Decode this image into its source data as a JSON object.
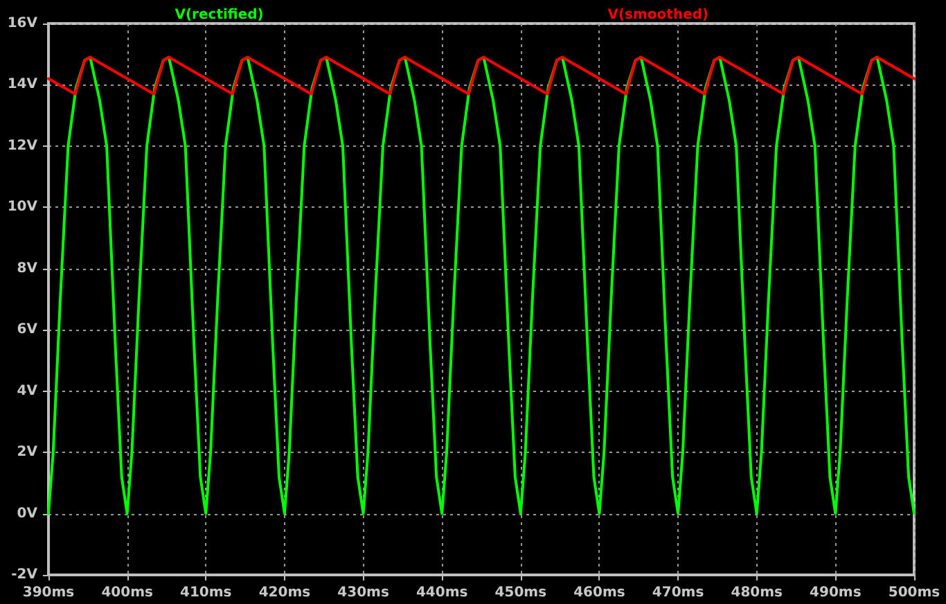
{
  "chart_data": {
    "type": "line",
    "xlim": [
      390,
      500
    ],
    "xticks": [
      {
        "value": 390,
        "label": "390ms"
      },
      {
        "value": 400,
        "label": "400ms"
      },
      {
        "value": 410,
        "label": "410ms"
      },
      {
        "value": 420,
        "label": "420ms"
      },
      {
        "value": 430,
        "label": "430ms"
      },
      {
        "value": 440,
        "label": "440ms"
      },
      {
        "value": 450,
        "label": "450ms"
      },
      {
        "value": 460,
        "label": "460ms"
      },
      {
        "value": 470,
        "label": "470ms"
      },
      {
        "value": 480,
        "label": "480ms"
      },
      {
        "value": 490,
        "label": "490ms"
      },
      {
        "value": 500,
        "label": "500ms"
      }
    ],
    "ylim": [
      -2,
      16
    ],
    "yticks": [
      {
        "value": -2,
        "label": "-2V"
      },
      {
        "value": 0,
        "label": "0V"
      },
      {
        "value": 2,
        "label": "2V"
      },
      {
        "value": 4,
        "label": "4V"
      },
      {
        "value": 6,
        "label": "6V"
      },
      {
        "value": 8,
        "label": "8V"
      },
      {
        "value": 10,
        "label": "10V"
      },
      {
        "value": 12,
        "label": "12V"
      },
      {
        "value": 14,
        "label": "14V"
      },
      {
        "value": 16,
        "label": "16V"
      }
    ],
    "grid": true,
    "legend": "top",
    "marker": "none",
    "line_style": "solid",
    "series": [
      {
        "name": "V(rectified)",
        "color": "#00ff00",
        "x": [
          390,
          390.6,
          391.5,
          392.5,
          393.5,
          394.6,
          395.3,
          396.5,
          397.4,
          398.5,
          399.3,
          400,
          400.6,
          401.5,
          402.5,
          403.5,
          404.6,
          405.3,
          406.5,
          407.4,
          408.5,
          409.3,
          410,
          410.6,
          411.5,
          412.5,
          413.5,
          414.6,
          415.3,
          416.5,
          417.4,
          418.5,
          419.3,
          420,
          420.6,
          421.5,
          422.5,
          423.5,
          424.6,
          425.3,
          426.5,
          427.4,
          428.5,
          429.3,
          430,
          430.6,
          431.5,
          432.5,
          433.5,
          434.6,
          435.3,
          436.5,
          437.4,
          438.5,
          439.3,
          440,
          440.6,
          441.5,
          442.5,
          443.5,
          444.6,
          445.3,
          446.5,
          447.4,
          448.5,
          449.3,
          450,
          450.6,
          451.5,
          452.5,
          453.5,
          454.6,
          455.3,
          456.5,
          457.4,
          458.5,
          459.3,
          460,
          460.6,
          461.5,
          462.5,
          463.5,
          464.6,
          465.3,
          466.5,
          467.4,
          468.5,
          469.3,
          470,
          470.6,
          471.5,
          472.5,
          473.5,
          474.6,
          475.3,
          476.5,
          477.4,
          478.5,
          479.3,
          480,
          480.6,
          481.5,
          482.5,
          483.5,
          484.6,
          485.3,
          486.5,
          487.4,
          488.5,
          489.3,
          490,
          490.6,
          491.5,
          492.5,
          493.5,
          494.6,
          495.3,
          496.5,
          497.4,
          498.5,
          499.3,
          500
        ],
        "values": [
          0,
          2,
          7,
          12,
          13.9,
          14.8,
          14.9,
          13.5,
          12,
          5.5,
          1.2,
          0,
          2,
          7,
          12,
          13.9,
          14.8,
          14.9,
          13.5,
          12,
          5.5,
          1.2,
          0,
          2,
          7,
          12,
          13.9,
          14.8,
          14.9,
          13.5,
          12,
          5.5,
          1.2,
          0,
          2,
          7,
          12,
          13.9,
          14.8,
          14.9,
          13.5,
          12,
          5.5,
          1.2,
          0,
          2,
          7,
          12,
          13.9,
          14.8,
          14.9,
          13.5,
          12,
          5.5,
          1.2,
          0,
          2,
          7,
          12,
          13.9,
          14.8,
          14.9,
          13.5,
          12,
          5.5,
          1.2,
          0,
          2,
          7,
          12,
          13.9,
          14.8,
          14.9,
          13.5,
          12,
          5.5,
          1.2,
          0,
          2,
          7,
          12,
          13.9,
          14.8,
          14.9,
          13.5,
          12,
          5.5,
          1.2,
          0,
          2,
          7,
          12,
          13.9,
          14.8,
          14.9,
          13.5,
          12,
          5.5,
          1.2,
          0,
          2,
          7,
          12,
          13.9,
          14.8,
          14.9,
          13.5,
          12,
          5.5,
          1.2,
          0,
          2,
          7,
          12,
          13.9,
          14.8,
          14.9,
          13.5,
          12,
          5.5,
          1.2,
          0
        ]
      },
      {
        "name": "V(smoothed)",
        "color": "#ff0000",
        "x": [
          390,
          393.4,
          394.6,
          395.3,
          403.4,
          404.6,
          405.3,
          413.4,
          414.6,
          415.3,
          423.4,
          424.6,
          425.3,
          433.4,
          434.6,
          435.3,
          443.4,
          444.6,
          445.3,
          453.4,
          454.6,
          455.3,
          463.4,
          464.6,
          465.3,
          473.4,
          474.6,
          475.3,
          483.4,
          484.6,
          485.3,
          493.4,
          494.6,
          495.3,
          500
        ],
        "values": [
          14.2,
          13.7,
          14.8,
          14.9,
          13.7,
          14.8,
          14.9,
          13.7,
          14.8,
          14.9,
          13.7,
          14.8,
          14.9,
          13.7,
          14.8,
          14.9,
          13.7,
          14.8,
          14.9,
          13.7,
          14.8,
          14.9,
          13.7,
          14.8,
          14.9,
          13.7,
          14.8,
          14.9,
          13.7,
          14.8,
          14.9,
          13.7,
          14.8,
          14.9,
          14.2
        ]
      }
    ]
  }
}
